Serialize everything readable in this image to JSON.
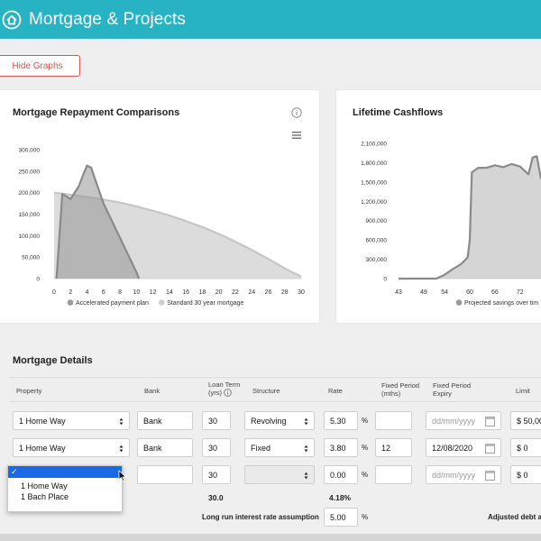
{
  "header": {
    "title": "Mortgage & Projects",
    "icon": "home-icon",
    "bg": "#27b3c4"
  },
  "actions": {
    "hide_graphs_label": "Hide Graphs"
  },
  "chart_data": [
    {
      "type": "area",
      "title": "Mortgage Repayment Comparisons",
      "xlabel": "",
      "ylabel": "",
      "x_ticks": [
        "0",
        "2",
        "4",
        "6",
        "8",
        "10",
        "12",
        "14",
        "16",
        "18",
        "20",
        "22",
        "24",
        "26",
        "28",
        "30"
      ],
      "y_ticks": [
        "0",
        "50,000",
        "100,000",
        "150,000",
        "200,000",
        "250,000",
        "300,000"
      ],
      "xlim": [
        0,
        30
      ],
      "ylim": [
        0,
        300000
      ],
      "legend_position": "bottom",
      "series": [
        {
          "name": "Accelerated payment plan",
          "color": "#9a9a9a",
          "x": [
            0.3,
            1,
            2,
            3,
            3.5,
            4,
            4.5,
            5,
            6,
            7,
            8,
            9,
            10,
            10.3
          ],
          "y": [
            0,
            197000,
            185000,
            215000,
            240000,
            263000,
            258000,
            230000,
            175000,
            135000,
            95000,
            55000,
            15000,
            0
          ]
        },
        {
          "name": "Standard 30 year mortgage",
          "color": "#cfcfcf",
          "x": [
            0,
            2,
            4,
            6,
            8,
            10,
            12,
            14,
            16,
            18,
            20,
            22,
            24,
            26,
            28,
            29,
            30
          ],
          "y": [
            200000,
            195000,
            190000,
            184000,
            177000,
            168000,
            158000,
            147000,
            134000,
            120000,
            104000,
            86000,
            67000,
            46000,
            24000,
            14000,
            5000
          ]
        }
      ]
    },
    {
      "type": "area",
      "title": "Lifetime Cashflows",
      "xlabel": "",
      "ylabel": "",
      "x_ticks": [
        "43",
        "49",
        "54",
        "60",
        "66",
        "72"
      ],
      "y_ticks": [
        "0",
        "300,000",
        "600,000",
        "900,000",
        "1,200,000",
        "1,500,000",
        "1,800,000",
        "2,100,000"
      ],
      "xlim": [
        43,
        77
      ],
      "ylim": [
        0,
        2100000
      ],
      "legend_position": "bottom",
      "series": [
        {
          "name": "Projected savings over tim",
          "color": "#9a9a9a",
          "x": [
            43,
            52,
            54,
            56,
            58,
            59.5,
            60,
            60.5,
            62,
            64,
            66,
            68,
            70,
            72,
            74,
            75,
            76,
            77
          ],
          "y": [
            0,
            0,
            60000,
            150000,
            230000,
            330000,
            600000,
            1650000,
            1720000,
            1720000,
            1760000,
            1730000,
            1780000,
            1740000,
            1620000,
            1880000,
            1900000,
            1550000
          ]
        }
      ]
    }
  ],
  "details": {
    "title": "Mortgage Details",
    "columns": {
      "property": "Property",
      "bank": "Bank",
      "loan_term_1": "Loan Term",
      "loan_term_2": "(yrs)",
      "structure": "Structure",
      "rate": "Rate",
      "fixed_period_1": "Fixed Period",
      "fixed_period_2": "(mths)",
      "fixed_expiry_1": "Fixed Period",
      "fixed_expiry_2": "Expiry",
      "limit": "Limit"
    },
    "rows": [
      {
        "property": "1 Home Way",
        "bank": "Bank",
        "term": "30",
        "structure": "Revolving",
        "rate": "5.30",
        "fixed_period": "",
        "expiry": "dd/mm/yyyy",
        "limit": "$ 50,00"
      },
      {
        "property": "1 Home Way",
        "bank": "Bank",
        "term": "30",
        "structure": "Fixed",
        "rate": "3.80",
        "fixed_period": "12",
        "expiry": "12/08/2020",
        "limit": "$ 0"
      },
      {
        "property": "",
        "bank": "",
        "term": "30",
        "structure": "",
        "rate": "0.00",
        "fixed_period": "",
        "expiry": "dd/mm/yyyy",
        "limit": "$ 0"
      }
    ],
    "pct_symbol": "%",
    "dropdown": {
      "selected": "✓",
      "options": [
        "1 Home Way",
        "1 Bach Place"
      ]
    },
    "totals": {
      "term": "30.0",
      "rate": "4.18%"
    },
    "footer": {
      "interest_label": "Long run interest rate assumption",
      "interest_value": "5.00",
      "adjusted_label": "Adjusted debt a"
    }
  }
}
